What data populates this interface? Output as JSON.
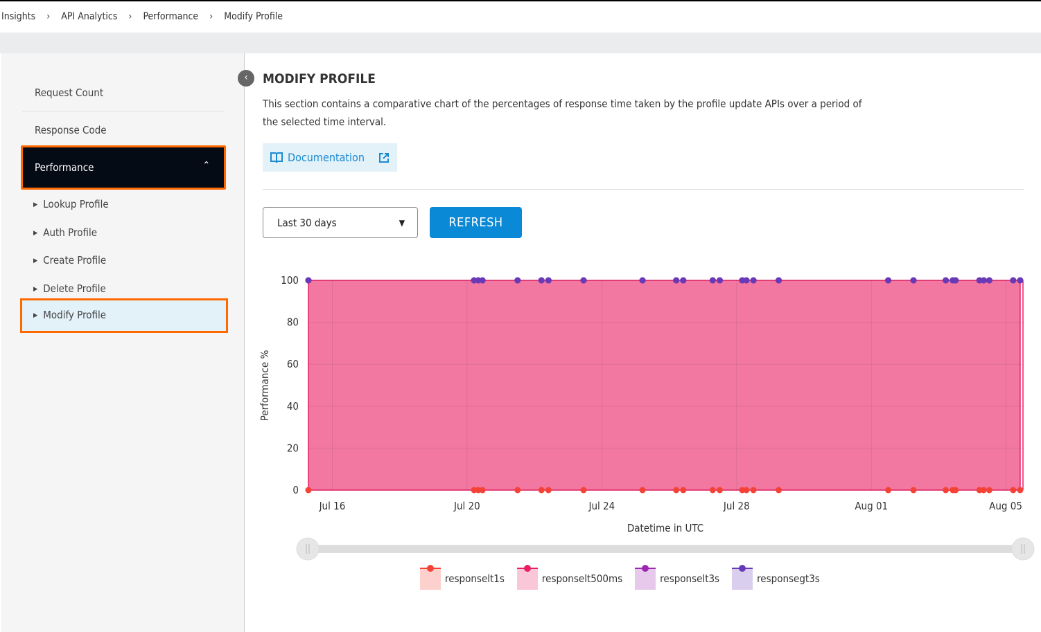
{
  "breadcrumb": [
    "Insights",
    "API Analytics",
    "Performance",
    "Modify Profile"
  ],
  "sidebar": {
    "items": [
      "Request Count",
      "Response Code"
    ],
    "active_group": "Performance",
    "sub_items": [
      "Lookup Profile",
      "Auth Profile",
      "Create Profile",
      "Delete Profile",
      "Modify Profile"
    ],
    "selected_sub": "Modify Profile"
  },
  "main": {
    "title": "MODIFY PROFILE",
    "description": "This section contains a comparative chart of the percentages of response time taken by the profile update APIs over a period of the selected time interval.",
    "doc_label": "Documentation",
    "time_range": "Last 30 days",
    "refresh_label": "REFRESH"
  },
  "chart_data": {
    "type": "area",
    "stacked": true,
    "xlabel": "Datetime in UTC",
    "ylabel": "Performance %",
    "ylim": [
      0,
      100
    ],
    "yticks": [
      0,
      20,
      40,
      60,
      80,
      100
    ],
    "xticks": [
      "Jul 16",
      "Jul 20",
      "Jul 24",
      "Jul 28",
      "Aug 01",
      "Aug 05"
    ],
    "xlim": [
      "Jul 15 07:00",
      "Aug 05 12:00"
    ],
    "grid": true,
    "legend": "bottom",
    "x": [
      "Jul 15 07:00",
      "Jul 20 05:00",
      "Jul 20 08:00",
      "Jul 20 11:00",
      "Jul 21 12:00",
      "Jul 22 05:00",
      "Jul 22 10:00",
      "Jul 23 11:00",
      "Jul 25 05:00",
      "Jul 26 05:00",
      "Jul 26 10:00",
      "Jul 27 07:00",
      "Jul 27 12:00",
      "Jul 28 04:00",
      "Jul 28 07:00",
      "Jul 28 12:00",
      "Jul 29 06:00",
      "Aug 01 12:00",
      "Aug 02 06:00",
      "Aug 03 05:00",
      "Aug 03 10:00",
      "Aug 03 12:00",
      "Aug 04 05:00",
      "Aug 04 08:00",
      "Aug 04 12:00",
      "Aug 05 05:00",
      "Aug 05 10:00"
    ],
    "series": [
      {
        "name": "responselt1s",
        "color": "#f44336",
        "value_all": 0
      },
      {
        "name": "responselt500ms",
        "color": "#e91e63",
        "value_all": 100
      },
      {
        "name": "responselt3s",
        "color": "#9c27b0",
        "value_all": 0
      },
      {
        "name": "responsegt3s",
        "color": "#673ab7",
        "value_all": 0
      }
    ]
  }
}
